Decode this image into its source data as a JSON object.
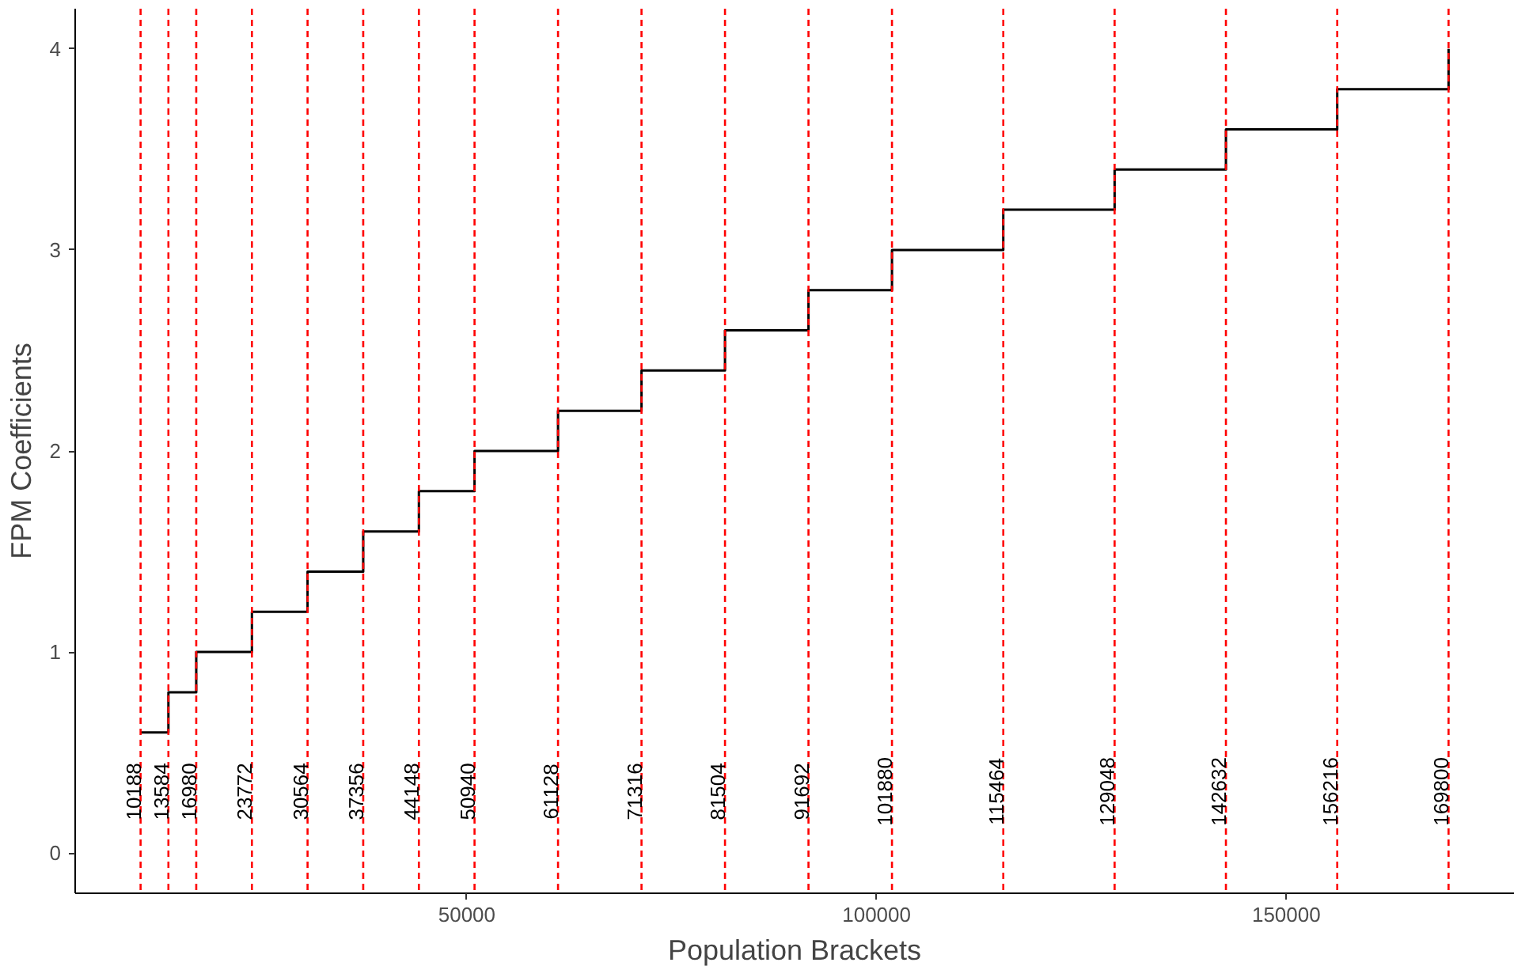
{
  "chart_data": {
    "type": "step",
    "xlabel": "Population Brackets",
    "ylabel": "FPM Coefficients",
    "x": [
      10188,
      13584,
      16980,
      23772,
      30564,
      37356,
      44148,
      50940,
      61128,
      71316,
      81504,
      91692,
      101880,
      115464,
      129048,
      142632,
      156216,
      169800
    ],
    "series": [
      {
        "color": "#000000",
        "values": [
          0.6,
          0.8,
          1.0,
          1.2,
          1.4,
          1.6,
          1.8,
          2.0,
          2.2,
          2.4,
          2.6,
          2.8,
          3.0,
          3.2,
          3.4,
          3.6,
          3.8,
          4.0
        ]
      }
    ],
    "xlim": [
      2207,
      177781
    ],
    "ylim": [
      -0.2,
      4.2
    ],
    "xticks": [
      50000,
      100000,
      150000
    ],
    "yticks": [
      0,
      1,
      2,
      3,
      4
    ],
    "grid": false,
    "marker": "none",
    "line_style": "solid",
    "ref_lines": [
      {
        "axis": "x",
        "value": 10188,
        "label": "10188",
        "color": "#ff0000",
        "line_style": "dashed"
      },
      {
        "axis": "x",
        "value": 13584,
        "label": "13584",
        "color": "#ff0000",
        "line_style": "dashed"
      },
      {
        "axis": "x",
        "value": 16980,
        "label": "16980",
        "color": "#ff0000",
        "line_style": "dashed"
      },
      {
        "axis": "x",
        "value": 23772,
        "label": "23772",
        "color": "#ff0000",
        "line_style": "dashed"
      },
      {
        "axis": "x",
        "value": 30564,
        "label": "30564",
        "color": "#ff0000",
        "line_style": "dashed"
      },
      {
        "axis": "x",
        "value": 37356,
        "label": "37356",
        "color": "#ff0000",
        "line_style": "dashed"
      },
      {
        "axis": "x",
        "value": 44148,
        "label": "44148",
        "color": "#ff0000",
        "line_style": "dashed"
      },
      {
        "axis": "x",
        "value": 50940,
        "label": "50940",
        "color": "#ff0000",
        "line_style": "dashed"
      },
      {
        "axis": "x",
        "value": 61128,
        "label": "61128",
        "color": "#ff0000",
        "line_style": "dashed"
      },
      {
        "axis": "x",
        "value": 71316,
        "label": "71316",
        "color": "#ff0000",
        "line_style": "dashed"
      },
      {
        "axis": "x",
        "value": 81504,
        "label": "81504",
        "color": "#ff0000",
        "line_style": "dashed"
      },
      {
        "axis": "x",
        "value": 91692,
        "label": "91692",
        "color": "#ff0000",
        "line_style": "dashed"
      },
      {
        "axis": "x",
        "value": 101880,
        "label": "101880",
        "color": "#ff0000",
        "line_style": "dashed"
      },
      {
        "axis": "x",
        "value": 115464,
        "label": "115464",
        "color": "#ff0000",
        "line_style": "dashed"
      },
      {
        "axis": "x",
        "value": 129048,
        "label": "129048",
        "color": "#ff0000",
        "line_style": "dashed"
      },
      {
        "axis": "x",
        "value": 142632,
        "label": "142632",
        "color": "#ff0000",
        "line_style": "dashed"
      },
      {
        "axis": "x",
        "value": 156216,
        "label": "156216",
        "color": "#ff0000",
        "line_style": "dashed"
      },
      {
        "axis": "x",
        "value": 169800,
        "label": "169800",
        "color": "#ff0000",
        "line_style": "dashed"
      }
    ]
  }
}
